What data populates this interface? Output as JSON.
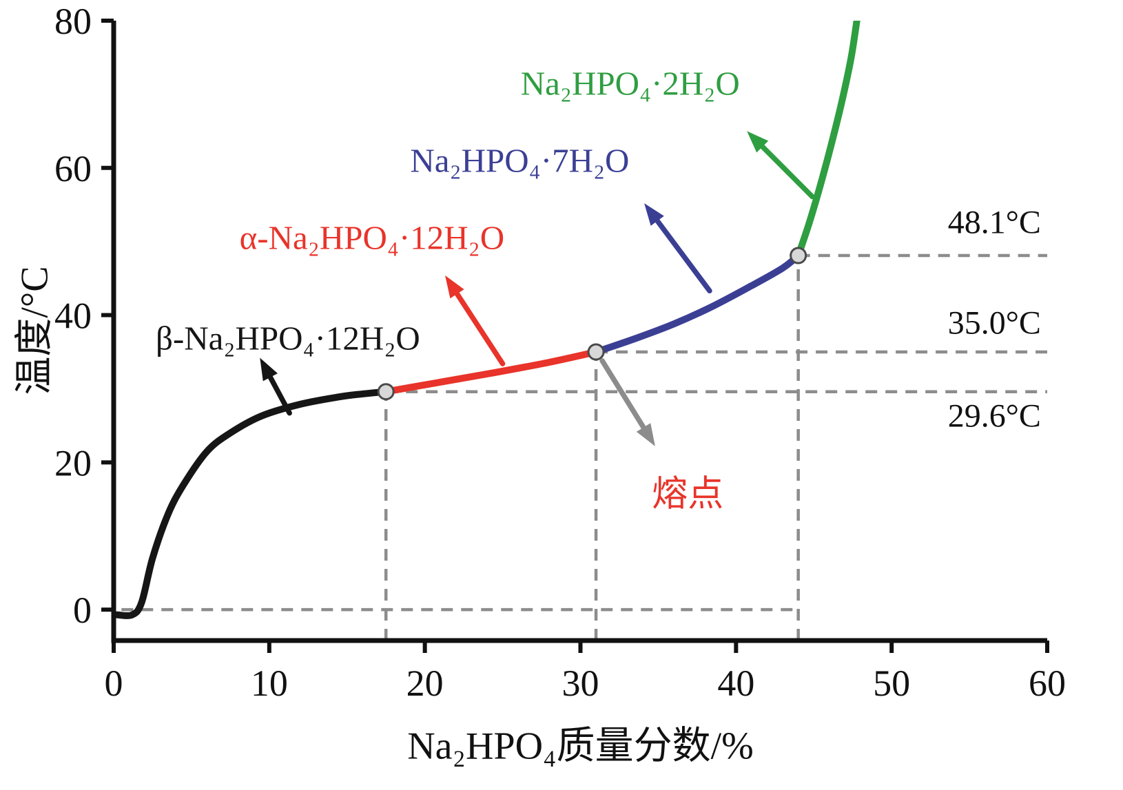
{
  "chart_data": {
    "type": "line",
    "title": "",
    "xlabel": "Na₂HPO₄质量分数/%",
    "ylabel": "温度/°C",
    "xlim": [
      0,
      60
    ],
    "ylim": [
      -4.2,
      80
    ],
    "x_ticks": [
      0,
      10,
      20,
      30,
      40,
      50,
      60
    ],
    "y_ticks": [
      0,
      20,
      40,
      60,
      80
    ],
    "grid": false,
    "legend": "none",
    "series": [
      {
        "name": "β-Na₂HPO₄·12H₂O solubility branch",
        "color": "#161616",
        "points": [
          [
            0.2,
            -0.7
          ],
          [
            1.2,
            -0.7
          ],
          [
            1.8,
            1.0
          ],
          [
            2.5,
            7.0
          ],
          [
            3.5,
            13.0
          ],
          [
            4.5,
            17.0
          ],
          [
            6.0,
            21.5
          ],
          [
            7.5,
            24.0
          ],
          [
            9.5,
            26.3
          ],
          [
            12.0,
            27.9
          ],
          [
            14.5,
            28.9
          ],
          [
            16.0,
            29.3
          ],
          [
            17.5,
            29.6
          ]
        ]
      },
      {
        "name": "α-Na₂HPO₄·12H₂O solubility branch",
        "color": "#e8342a",
        "points": [
          [
            17.5,
            29.6
          ],
          [
            21.0,
            30.9
          ],
          [
            24.5,
            32.2
          ],
          [
            28.0,
            33.6
          ],
          [
            31.0,
            35.0
          ]
        ]
      },
      {
        "name": "Na₂HPO₄·7H₂O solubility branch",
        "color": "#3b3f94",
        "points": [
          [
            31.0,
            35.0
          ],
          [
            33.5,
            36.8
          ],
          [
            36.0,
            38.8
          ],
          [
            38.5,
            41.2
          ],
          [
            41.0,
            44.0
          ],
          [
            43.0,
            46.4
          ],
          [
            44.0,
            48.1
          ]
        ]
      },
      {
        "name": "Na₂HPO₄·2H₂O solubility branch",
        "color": "#2f9e41",
        "points": [
          [
            44.0,
            48.1
          ],
          [
            44.7,
            52.5
          ],
          [
            45.4,
            57.5
          ],
          [
            46.1,
            63.0
          ],
          [
            46.8,
            69.0
          ],
          [
            47.4,
            75.0
          ],
          [
            47.8,
            80.5
          ],
          [
            48.0,
            83.0
          ]
        ]
      }
    ],
    "junction_markers": [
      [
        17.5,
        29.6
      ],
      [
        31.0,
        35.0
      ],
      [
        44.0,
        48.1
      ]
    ],
    "dashed_lines": {
      "color": "#8c8c8c",
      "horizontal": [
        {
          "y": 0,
          "x1": 0.5,
          "x2": 44
        },
        {
          "y": 29.6,
          "x1": 17.5,
          "x2": 60
        },
        {
          "y": 35.0,
          "x1": 31,
          "x2": 60
        },
        {
          "y": 48.1,
          "x1": 44,
          "x2": 60
        }
      ],
      "vertical": [
        {
          "x": 17.5,
          "y1": -4.2,
          "y2": 29.6
        },
        {
          "x": 31,
          "y1": -4.2,
          "y2": 35.0
        },
        {
          "x": 44,
          "y1": -4.2,
          "y2": 48.1
        }
      ]
    },
    "curve_labels": [
      {
        "text": "β-Na₂HPO₄·12H₂O",
        "color": "#161616",
        "x": 11.2,
        "y": 36.9
      },
      {
        "text": "α-Na₂HPO₄·12H₂O",
        "color": "#e8342a",
        "x": 16.6,
        "y": 50.5
      },
      {
        "text": "Na₂HPO₄·7H₂O",
        "color": "#3b3f94",
        "x": 26.1,
        "y": 61.0
      },
      {
        "text": "Na₂HPO₄·2H₂O",
        "color": "#2f9e41",
        "x": 33.2,
        "y": 71.5
      }
    ],
    "melting_point_label": {
      "text": "熔点",
      "color": "#e8342a",
      "x": 36.9,
      "y": 16.2
    },
    "temp_labels": [
      {
        "text": "48.1°C",
        "x": 59.6,
        "y": 52.6
      },
      {
        "text": "35.0°C",
        "x": 59.6,
        "y": 38.9
      },
      {
        "text": "29.6°C",
        "x": 59.6,
        "y": 26.3
      }
    ],
    "arrows": [
      {
        "color": "#161616",
        "x1": 11.3,
        "y1": 26.7,
        "x2": 9.4,
        "y2": 34.2
      },
      {
        "color": "#e8342a",
        "x1": 25.0,
        "y1": 33.4,
        "x2": 21.3,
        "y2": 45.4
      },
      {
        "color": "#3b3f94",
        "x1": 38.3,
        "y1": 43.3,
        "x2": 34.1,
        "y2": 55.2
      },
      {
        "color": "#2f9e41",
        "x1": 44.9,
        "y1": 56.1,
        "x2": 40.7,
        "y2": 65.0
      },
      {
        "color": "#8c8c8c",
        "x1": 31.4,
        "y1": 33.8,
        "x2": 34.8,
        "y2": 22.2
      }
    ],
    "axis_color": "#111111"
  }
}
